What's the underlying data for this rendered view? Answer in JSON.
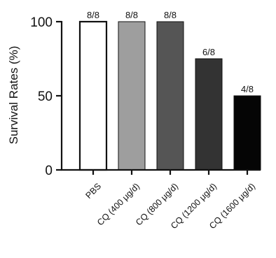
{
  "chart_data": {
    "type": "bar",
    "ylabel": "Survival Rates (%)",
    "ylim": [
      0,
      100
    ],
    "yticks": [
      0,
      50,
      100
    ],
    "grid": false,
    "categories": [
      "PBS",
      "CQ (400 μg/d)",
      "CQ (800 μg/d)",
      "CQ (1200 μg/d)",
      "CQ (1600 μg/d)"
    ],
    "values": [
      100,
      100,
      100,
      75,
      50
    ],
    "data_labels": [
      "8/8",
      "8/8",
      "8/8",
      "6/8",
      "4/8"
    ],
    "bar_fills": [
      "#ffffff",
      "#9e9e9e",
      "#555555",
      "#333333",
      "#050505"
    ]
  }
}
